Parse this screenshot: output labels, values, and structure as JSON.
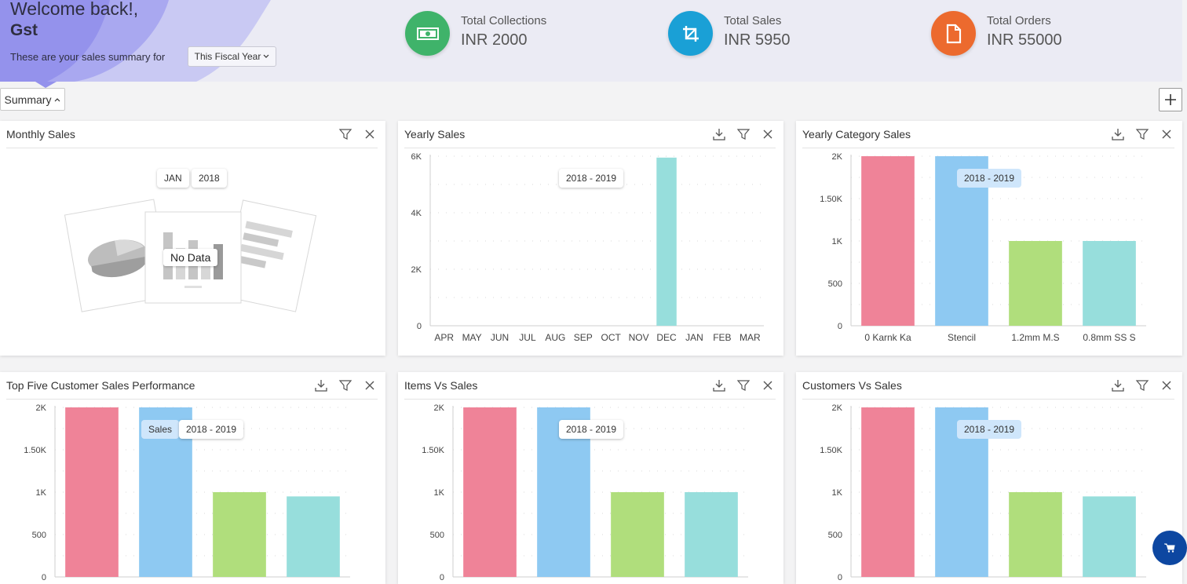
{
  "header": {
    "welcome": "Welcome back!,",
    "username": "Gst",
    "summary_text": "These are your sales summary for",
    "period": "This Fiscal Year"
  },
  "kpis": [
    {
      "label": "Total Collections",
      "value": "INR 2000",
      "color": "#3fb36a",
      "icon": "money-icon"
    },
    {
      "label": "Total Sales",
      "value": "INR 5950",
      "color": "#1aa0d6",
      "icon": "crop-icon"
    },
    {
      "label": "Total Orders",
      "value": "INR 55000",
      "color": "#ec6a2e",
      "icon": "document-icon"
    }
  ],
  "toolbar": {
    "summary_label": "Summary"
  },
  "cards": {
    "monthly": {
      "title": "Monthly Sales",
      "month": "JAN",
      "year": "2018",
      "no_data": "No Data"
    },
    "yearly": {
      "title": "Yearly Sales",
      "period": "2018 - 2019"
    },
    "category": {
      "title": "Yearly Category Sales",
      "period": "2018 - 2019"
    },
    "customers_top": {
      "title": "Top Five Customer Sales Performance",
      "period": "2018 - 2019",
      "series": "Sales"
    },
    "items": {
      "title": "Items Vs Sales",
      "period": "2018 - 2019"
    },
    "customers": {
      "title": "Customers Vs Sales",
      "period": "2018 - 2019"
    }
  },
  "chart_data": [
    {
      "id": "yearly",
      "type": "bar",
      "title": "Yearly Sales",
      "categories": [
        "APR",
        "MAY",
        "JUN",
        "JUL",
        "AUG",
        "SEP",
        "OCT",
        "NOV",
        "DEC",
        "JAN",
        "FEB",
        "MAR"
      ],
      "values": [
        0,
        0,
        0,
        0,
        0,
        0,
        0,
        0,
        5950,
        0,
        0,
        0
      ],
      "yticks": [
        "0",
        "2K",
        "4K",
        "6K"
      ],
      "ylim": [
        0,
        6000
      ],
      "colors": [
        "#97dedc"
      ]
    },
    {
      "id": "category",
      "type": "bar",
      "title": "Yearly Category Sales",
      "categories": [
        "0 Karnk Ka",
        "Stencil",
        "1.2mm M.S",
        "0.8mm SS S"
      ],
      "values": [
        2000,
        2000,
        1000,
        1000
      ],
      "yticks": [
        "0",
        "500",
        "1K",
        "1.50K",
        "2K"
      ],
      "ylim": [
        0,
        2000
      ],
      "colors": [
        "#ef8398",
        "#8ec9f2",
        "#b0de7c",
        "#97dedc"
      ]
    },
    {
      "id": "customers_top",
      "type": "bar",
      "title": "Top Five Customer Sales Performance",
      "categories": [
        "",
        "",
        "",
        ""
      ],
      "values": [
        2000,
        2000,
        1000,
        950
      ],
      "yticks": [
        "0",
        "500",
        "1K",
        "1.50K",
        "2K"
      ],
      "ylim": [
        0,
        2000
      ],
      "colors": [
        "#ef8398",
        "#8ec9f2",
        "#b0de7c",
        "#97dedc"
      ]
    },
    {
      "id": "items",
      "type": "bar",
      "title": "Items Vs Sales",
      "categories": [
        "",
        "",
        "",
        ""
      ],
      "values": [
        2000,
        2000,
        1000,
        1000
      ],
      "yticks": [
        "0",
        "500",
        "1K",
        "1.50K",
        "2K"
      ],
      "ylim": [
        0,
        2000
      ],
      "colors": [
        "#ef8398",
        "#8ec9f2",
        "#b0de7c",
        "#97dedc"
      ]
    },
    {
      "id": "customers",
      "type": "bar",
      "title": "Customers Vs Sales",
      "categories": [
        "",
        "",
        "",
        ""
      ],
      "values": [
        2000,
        2000,
        1000,
        950
      ],
      "yticks": [
        "0",
        "500",
        "1K",
        "1.50K",
        "2K"
      ],
      "ylim": [
        0,
        2000
      ],
      "colors": [
        "#ef8398",
        "#8ec9f2",
        "#b0de7c",
        "#97dedc"
      ]
    }
  ]
}
